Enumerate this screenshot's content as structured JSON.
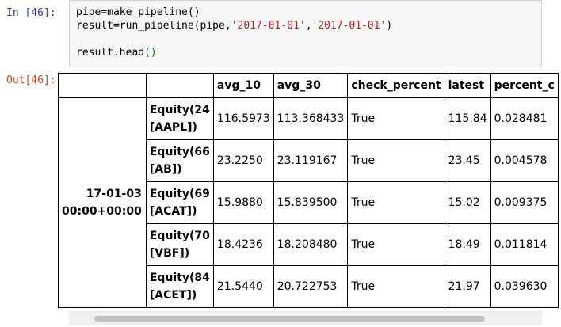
{
  "cell": {
    "in_prompt": "In [46]:",
    "out_prompt": "Out[46]:",
    "code": {
      "line1": "pipe=make_pipeline()",
      "line2_prefix": "result=run_pipeline(pipe,",
      "line2_arg1": "'2017-01-01'",
      "line2_comma": ",",
      "line2_arg2": "'2017-01-01'",
      "line2_suffix": ")",
      "line3": "",
      "line4_prefix": "result.head",
      "line4_parens": "()"
    }
  },
  "dataframe": {
    "columns": [
      "avg_10",
      "avg_30",
      "check_percent",
      "latest",
      "percent_c"
    ],
    "index_level1": {
      "line1": "17-01-03",
      "line2": "00:00+00:00"
    },
    "rows": [
      {
        "asset_line1": "Equity(24",
        "asset_line2": "[AAPL])",
        "avg_10": "116.5973",
        "avg_30": "113.368433",
        "check_percent": "True",
        "latest": "115.84",
        "percent": "0.028481"
      },
      {
        "asset_line1": "Equity(66",
        "asset_line2": "[AB])",
        "avg_10": "23.2250",
        "avg_30": "23.119167",
        "check_percent": "True",
        "latest": "23.45",
        "percent": "0.004578"
      },
      {
        "asset_line1": "Equity(69",
        "asset_line2": "[ACAT])",
        "avg_10": "15.9880",
        "avg_30": "15.839500",
        "check_percent": "True",
        "latest": "15.02",
        "percent": "0.009375"
      },
      {
        "asset_line1": "Equity(70",
        "asset_line2": "[VBF])",
        "avg_10": "18.4236",
        "avg_30": "18.208480",
        "check_percent": "True",
        "latest": "18.49",
        "percent": "0.011814"
      },
      {
        "asset_line1": "Equity(84",
        "asset_line2": "[ACET])",
        "avg_10": "21.5440",
        "avg_30": "20.722753",
        "check_percent": "True",
        "latest": "21.97",
        "percent": "0.039630"
      }
    ]
  },
  "colors": {
    "in_prompt": "#303f9f",
    "out_prompt": "#d84315",
    "string_literal": "#ba2121",
    "matched_paren": "#008000",
    "input_background": "#f7f7f7"
  }
}
